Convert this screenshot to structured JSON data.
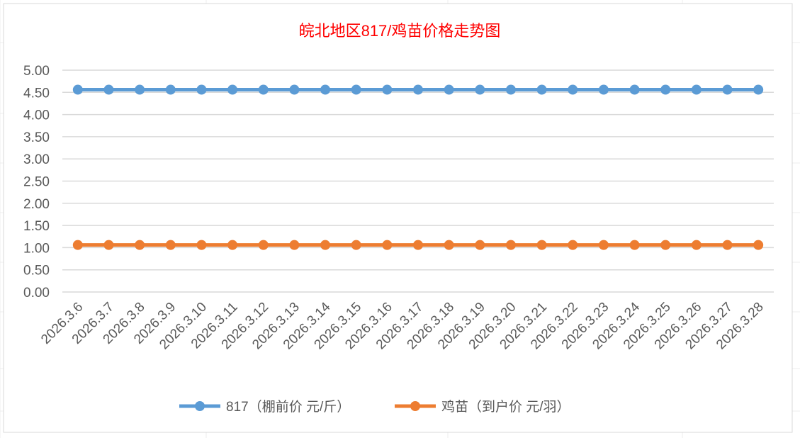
{
  "chart_data": {
    "type": "line",
    "title": "皖北地区817/鸡苗价格走势图",
    "xlabel": "",
    "ylabel": "",
    "categories": [
      "2026.3.6",
      "2026.3.7",
      "2026.3.8",
      "2026.3.9",
      "2026.3.10",
      "2026.3.11",
      "2026.3.12",
      "2026.3.13",
      "2026.3.14",
      "2026.3.15",
      "2026.3.16",
      "2026.3.17",
      "2026.3.18",
      "2026.3.19",
      "2026.3.20",
      "2026.3.21",
      "2026.3.22",
      "2026.3.23",
      "2026.3.24",
      "2026.3.25",
      "2026.3.26",
      "2026.3.27",
      "2026.3.28"
    ],
    "series": [
      {
        "name": "817（棚前价 元/斤）",
        "color": "#5b9bd5",
        "values": [
          4.56,
          4.56,
          4.56,
          4.56,
          4.56,
          4.56,
          4.56,
          4.56,
          4.56,
          4.56,
          4.56,
          4.56,
          4.56,
          4.56,
          4.56,
          4.56,
          4.56,
          4.56,
          4.56,
          4.56,
          4.56,
          4.56,
          4.56
        ]
      },
      {
        "name": "鸡苗（到户价 元/羽）",
        "color": "#ed7d31",
        "values": [
          1.06,
          1.06,
          1.06,
          1.06,
          1.06,
          1.06,
          1.06,
          1.06,
          1.06,
          1.06,
          1.06,
          1.06,
          1.06,
          1.06,
          1.06,
          1.06,
          1.06,
          1.06,
          1.06,
          1.06,
          1.06,
          1.06,
          1.06
        ]
      }
    ],
    "ylim": [
      0,
      5
    ],
    "yticks": [
      "0.00",
      "0.50",
      "1.00",
      "1.50",
      "2.00",
      "2.50",
      "3.00",
      "3.50",
      "4.00",
      "4.50",
      "5.00"
    ],
    "grid": true,
    "legend": "bottom",
    "title_color": "#ff0000"
  }
}
